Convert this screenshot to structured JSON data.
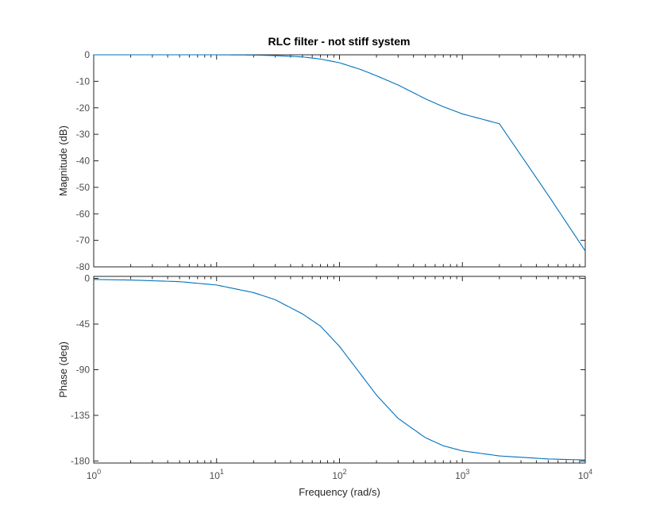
{
  "chart_data": [
    {
      "type": "line",
      "title": "RLC filter - not stiff system",
      "xlabel": "",
      "ylabel": "Magnitude (dB)",
      "x_scale": "log",
      "xlim": [
        1,
        10000
      ],
      "ylim": [
        -80,
        0
      ],
      "y_ticks": [
        0,
        -10,
        -20,
        -30,
        -40,
        -50,
        -60,
        -70,
        -80
      ],
      "y_tick_labels": [
        "0",
        "-10",
        "-20",
        "-30",
        "-40",
        "-50",
        "-60",
        "-70",
        "-80"
      ],
      "grid": false,
      "line_color": "#0072BD",
      "series": [
        {
          "x": [
            1,
            2,
            5,
            10,
            20,
            30,
            50,
            70,
            100,
            150,
            200,
            300,
            500,
            700,
            1000,
            2000,
            5000,
            10000
          ],
          "y": [
            0,
            0,
            0,
            0,
            -0.1,
            -0.3,
            -0.8,
            -1.6,
            -3.0,
            -5.6,
            -7.9,
            -11.4,
            -16.6,
            -19.6,
            -22.3,
            -26.0,
            -53.0,
            -74.0
          ]
        }
      ]
    },
    {
      "type": "line",
      "title": "",
      "xlabel": "Frequency  (rad/s)",
      "ylabel": "Phase (deg)",
      "x_scale": "log",
      "xlim": [
        1,
        10000
      ],
      "ylim": [
        -182,
        2
      ],
      "x_ticks": [
        1,
        10,
        100,
        1000,
        10000
      ],
      "x_tick_labels": [
        {
          "base": "10",
          "exp": "0"
        },
        {
          "base": "10",
          "exp": "1"
        },
        {
          "base": "10",
          "exp": "2"
        },
        {
          "base": "10",
          "exp": "3"
        },
        {
          "base": "10",
          "exp": "4"
        }
      ],
      "y_ticks": [
        0,
        -45,
        -90,
        -135,
        -180
      ],
      "y_tick_labels": [
        "0",
        "-45",
        "-90",
        "-135",
        "-180"
      ],
      "grid": false,
      "line_color": "#0072BD",
      "series": [
        {
          "x": [
            1,
            2,
            5,
            10,
            20,
            30,
            50,
            70,
            100,
            150,
            200,
            300,
            500,
            700,
            1000,
            2000,
            5000,
            10000
          ],
          "y": [
            -1,
            -1.6,
            -3.2,
            -6.5,
            -14.0,
            -21.0,
            -35.0,
            -47.0,
            -67.0,
            -95.0,
            -115.0,
            -138.0,
            -157.0,
            -165.0,
            -170.0,
            -175.0,
            -178.0,
            -179.0
          ]
        }
      ]
    }
  ]
}
